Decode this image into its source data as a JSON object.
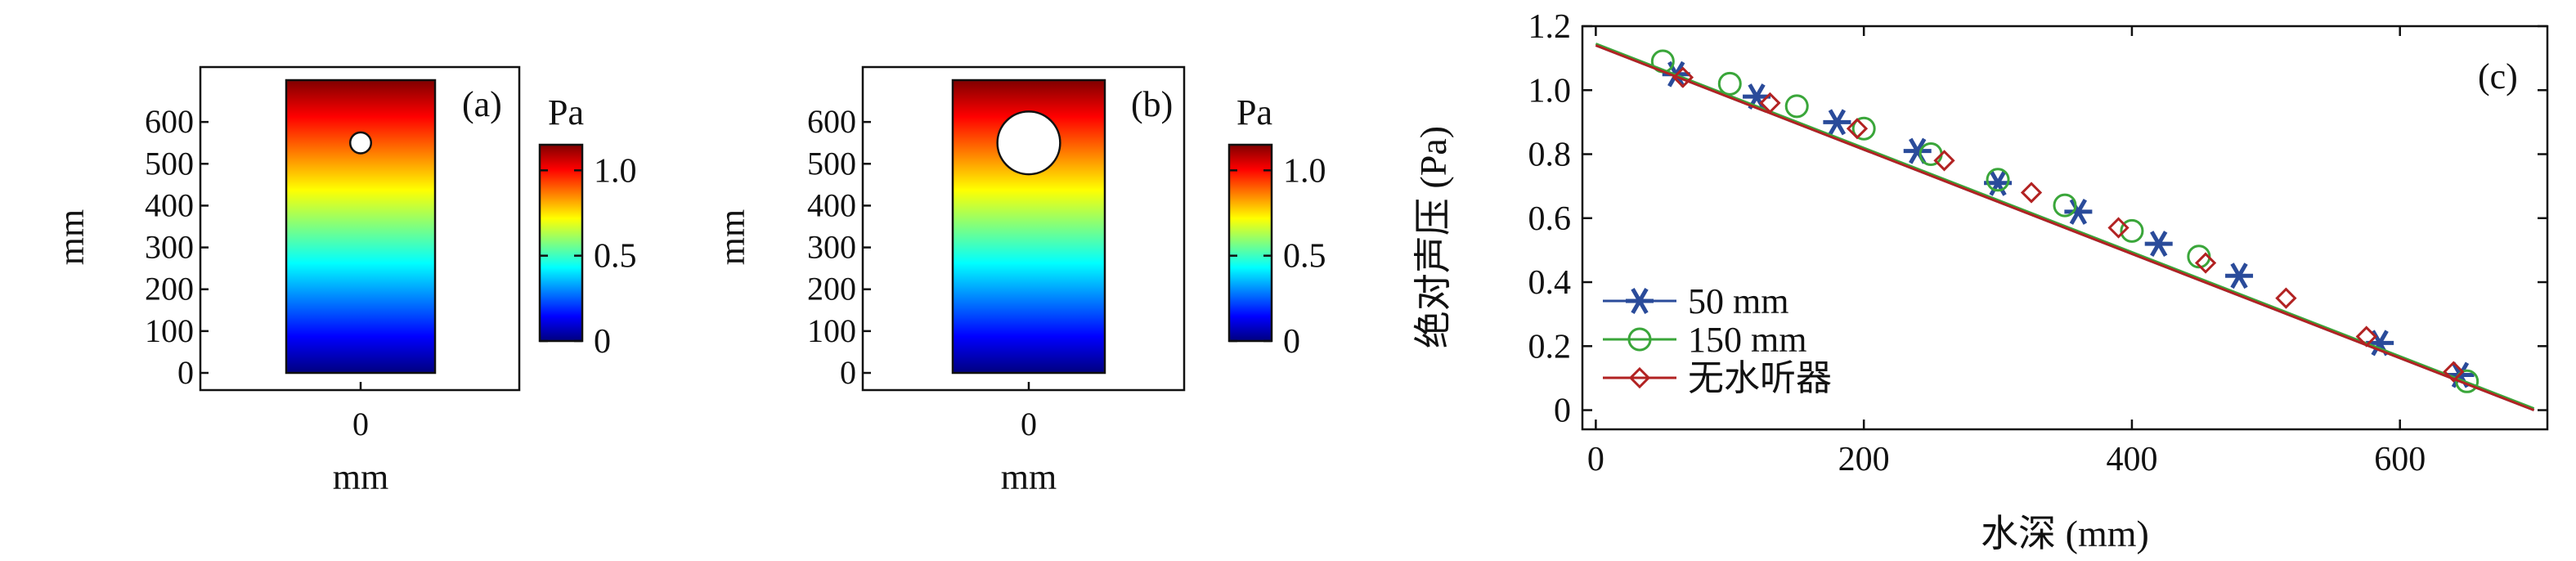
{
  "colors": {
    "jet": [
      "#00007f",
      "#0000ff",
      "#007fff",
      "#00ffff",
      "#7fff7f",
      "#ffff00",
      "#ff7f00",
      "#ff0000",
      "#7f0000"
    ],
    "series_50mm": "#2a4b9a",
    "series_150mm": "#3aa63a",
    "series_none": "#b22222"
  },
  "chart_data": [
    {
      "type": "heatmap",
      "panel_label": "(a)",
      "ylabel": "mm",
      "xlabel": "mm",
      "x_ticks": [
        "0"
      ],
      "y_ticks": [
        0,
        100,
        200,
        300,
        400,
        500,
        600
      ],
      "y_range_mm": [
        0,
        700
      ],
      "colorbar": {
        "title": "Pa",
        "ticks": [
          "0",
          "0.5",
          "1.0"
        ],
        "range": [
          0,
          1.15
        ]
      },
      "hole": {
        "center_y_mm": 550,
        "diameter_mm": 50
      }
    },
    {
      "type": "heatmap",
      "panel_label": "(b)",
      "ylabel": "mm",
      "xlabel": "mm",
      "x_ticks": [
        "0"
      ],
      "y_ticks": [
        0,
        100,
        200,
        300,
        400,
        500,
        600
      ],
      "y_range_mm": [
        0,
        700
      ],
      "colorbar": {
        "title": "Pa",
        "ticks": [
          "0",
          "0.5",
          "1.0"
        ],
        "range": [
          0,
          1.15
        ]
      },
      "hole": {
        "center_y_mm": 550,
        "diameter_mm": 150
      }
    },
    {
      "type": "line",
      "panel_label": "(c)",
      "xlabel": "水深 (mm)",
      "ylabel": "绝对声压 (Pa)",
      "xlim": [
        -10,
        710
      ],
      "ylim": [
        -0.06,
        1.2
      ],
      "x_ticks": [
        0,
        200,
        400,
        600
      ],
      "y_ticks": [
        0,
        0.2,
        0.4,
        0.6,
        0.8,
        1.0,
        1.2
      ],
      "legend_position": "bottom-left",
      "series": [
        {
          "name": "50 mm",
          "marker": "asterisk",
          "line_x": [
            0,
            700
          ],
          "line_y": [
            1.14,
            0.0
          ],
          "x": [
            60,
            120,
            180,
            240,
            300,
            360,
            420,
            480,
            585,
            645
          ],
          "y": [
            1.05,
            0.98,
            0.9,
            0.81,
            0.71,
            0.62,
            0.52,
            0.42,
            0.21,
            0.11
          ]
        },
        {
          "name": "150 mm",
          "marker": "circle",
          "line_x": [
            0,
            700
          ],
          "line_y": [
            1.145,
            0.005
          ],
          "x": [
            50,
            100,
            150,
            200,
            250,
            300,
            350,
            400,
            450,
            650
          ],
          "y": [
            1.09,
            1.02,
            0.95,
            0.88,
            0.8,
            0.72,
            0.64,
            0.56,
            0.48,
            0.09
          ]
        },
        {
          "name": "无水听器",
          "marker": "diamond",
          "line_x": [
            0,
            700
          ],
          "line_y": [
            1.14,
            0.0
          ],
          "x": [
            65,
            130,
            195,
            260,
            325,
            390,
            455,
            515,
            575,
            640
          ],
          "y": [
            1.04,
            0.96,
            0.88,
            0.78,
            0.68,
            0.57,
            0.46,
            0.35,
            0.23,
            0.12
          ]
        }
      ]
    }
  ]
}
